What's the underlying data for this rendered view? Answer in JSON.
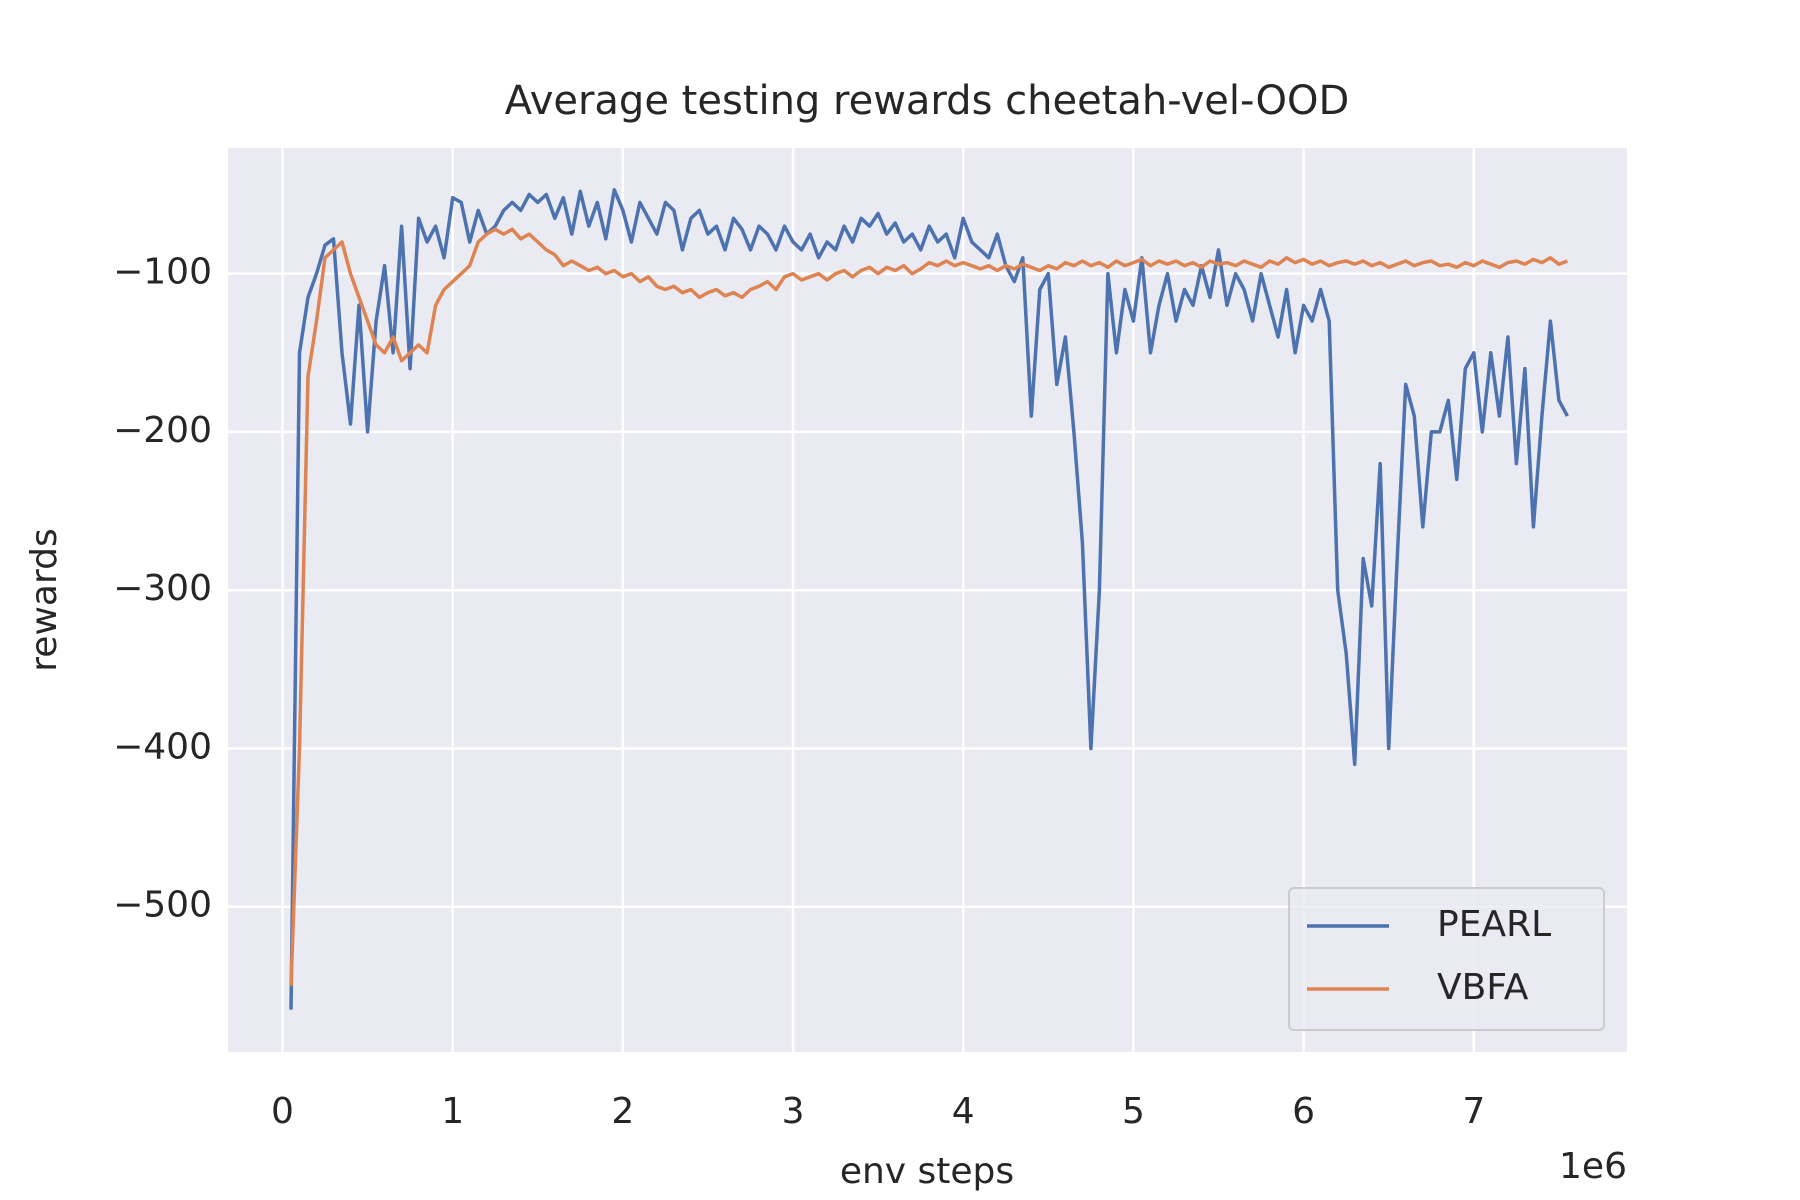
{
  "chart_data": {
    "type": "line",
    "title": "Average testing rewards cheetah-vel-OOD",
    "xlabel": "env steps",
    "ylabel": "rewards",
    "x_offset_label": "1e6",
    "xlim": [
      -0.32,
      7.9
    ],
    "ylim": [
      -591.8,
      -20.6
    ],
    "xticks": [
      0,
      1,
      2,
      3,
      4,
      5,
      6,
      7
    ],
    "yticks": [
      {
        "value": -500,
        "label": "−500"
      },
      {
        "value": -400,
        "label": "−400"
      },
      {
        "value": -300,
        "label": "−300"
      },
      {
        "value": -200,
        "label": "−200"
      },
      {
        "value": -100,
        "label": "−100"
      }
    ],
    "grid": true,
    "legend": "lower right",
    "x": [
      0.05,
      0.1,
      0.15,
      0.2,
      0.25,
      0.3,
      0.35,
      0.4,
      0.45,
      0.5,
      0.55,
      0.6,
      0.65,
      0.7,
      0.75,
      0.8,
      0.85,
      0.9,
      0.95,
      1.0,
      1.05,
      1.1,
      1.15,
      1.2,
      1.25,
      1.3,
      1.35,
      1.4,
      1.45,
      1.5,
      1.55,
      1.6,
      1.65,
      1.7,
      1.75,
      1.8,
      1.85,
      1.9,
      1.95,
      2.0,
      2.05,
      2.1,
      2.15,
      2.2,
      2.25,
      2.3,
      2.35,
      2.4,
      2.45,
      2.5,
      2.55,
      2.6,
      2.65,
      2.7,
      2.75,
      2.8,
      2.85,
      2.9,
      2.95,
      3.0,
      3.05,
      3.1,
      3.15,
      3.2,
      3.25,
      3.3,
      3.35,
      3.4,
      3.45,
      3.5,
      3.55,
      3.6,
      3.65,
      3.7,
      3.75,
      3.8,
      3.85,
      3.9,
      3.95,
      4.0,
      4.05,
      4.1,
      4.15,
      4.2,
      4.25,
      4.3,
      4.35,
      4.4,
      4.45,
      4.5,
      4.55,
      4.6,
      4.65,
      4.7,
      4.75,
      4.8,
      4.85,
      4.9,
      4.95,
      5.0,
      5.05,
      5.1,
      5.15,
      5.2,
      5.25,
      5.3,
      5.35,
      5.4,
      5.45,
      5.5,
      5.55,
      5.6,
      5.65,
      5.7,
      5.75,
      5.8,
      5.85,
      5.9,
      5.95,
      6.0,
      6.05,
      6.1,
      6.15,
      6.2,
      6.25,
      6.3,
      6.35,
      6.4,
      6.45,
      6.5,
      6.55,
      6.6,
      6.65,
      6.7,
      6.75,
      6.8,
      6.85,
      6.9,
      6.95,
      7.0,
      7.05,
      7.1,
      7.15,
      7.2,
      7.25,
      7.3,
      7.35,
      7.4,
      7.45,
      7.5,
      7.55
    ],
    "series": [
      {
        "name": "PEARL",
        "color": "#4c72b0",
        "values": [
          -565,
          -150,
          -115,
          -100,
          -82,
          -78,
          -150,
          -195,
          -120,
          -200,
          -130,
          -95,
          -150,
          -70,
          -160,
          -65,
          -80,
          -70,
          -90,
          -52,
          -55,
          -80,
          -60,
          -75,
          -70,
          -60,
          -55,
          -60,
          -50,
          -55,
          -50,
          -65,
          -52,
          -75,
          -48,
          -70,
          -55,
          -78,
          -47,
          -60,
          -80,
          -55,
          -65,
          -75,
          -55,
          -60,
          -85,
          -65,
          -60,
          -75,
          -70,
          -85,
          -65,
          -72,
          -85,
          -70,
          -75,
          -85,
          -70,
          -80,
          -85,
          -75,
          -90,
          -80,
          -85,
          -70,
          -80,
          -65,
          -70,
          -62,
          -75,
          -68,
          -80,
          -75,
          -85,
          -70,
          -80,
          -75,
          -90,
          -65,
          -80,
          -85,
          -90,
          -75,
          -95,
          -105,
          -90,
          -190,
          -110,
          -100,
          -170,
          -140,
          -200,
          -270,
          -400,
          -300,
          -100,
          -150,
          -110,
          -130,
          -90,
          -150,
          -120,
          -100,
          -130,
          -110,
          -120,
          -95,
          -115,
          -85,
          -120,
          -100,
          -110,
          -130,
          -100,
          -120,
          -140,
          -110,
          -150,
          -120,
          -130,
          -110,
          -130,
          -300,
          -340,
          -410,
          -280,
          -310,
          -220,
          -400,
          -280,
          -170,
          -190,
          -260,
          -200,
          -200,
          -180,
          -230,
          -160,
          -150,
          -200,
          -150,
          -190,
          -140,
          -220,
          -160,
          -260,
          -190,
          -130,
          -180,
          -190
        ]
      },
      {
        "name": "VBFA",
        "color": "#dd8452",
        "values": [
          -550,
          -400,
          -165,
          -130,
          -90,
          -85,
          -80,
          -100,
          -115,
          -130,
          -145,
          -150,
          -140,
          -155,
          -150,
          -145,
          -150,
          -120,
          -110,
          -105,
          -100,
          -95,
          -80,
          -75,
          -72,
          -75,
          -72,
          -78,
          -75,
          -80,
          -85,
          -88,
          -95,
          -92,
          -95,
          -98,
          -96,
          -100,
          -98,
          -102,
          -100,
          -105,
          -102,
          -108,
          -110,
          -108,
          -112,
          -110,
          -115,
          -112,
          -110,
          -114,
          -112,
          -115,
          -110,
          -108,
          -105,
          -110,
          -102,
          -100,
          -104,
          -102,
          -100,
          -104,
          -100,
          -98,
          -102,
          -98,
          -96,
          -100,
          -96,
          -98,
          -95,
          -100,
          -97,
          -93,
          -95,
          -92,
          -95,
          -93,
          -95,
          -97,
          -95,
          -98,
          -95,
          -97,
          -94,
          -96,
          -98,
          -95,
          -97,
          -93,
          -95,
          -92,
          -95,
          -93,
          -96,
          -92,
          -95,
          -93,
          -91,
          -95,
          -92,
          -94,
          -92,
          -95,
          -93,
          -96,
          -92,
          -94,
          -93,
          -95,
          -92,
          -94,
          -96,
          -92,
          -94,
          -90,
          -93,
          -91,
          -94,
          -92,
          -95,
          -93,
          -92,
          -94,
          -92,
          -95,
          -93,
          -96,
          -94,
          -92,
          -95,
          -93,
          -92,
          -95,
          -94,
          -96,
          -93,
          -95,
          -92,
          -94,
          -96,
          -93,
          -92,
          -94,
          -91,
          -93,
          -90,
          -94,
          -92
        ]
      }
    ]
  }
}
